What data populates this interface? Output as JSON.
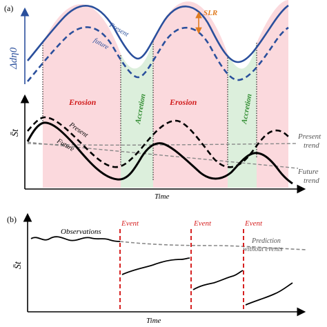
{
  "panel_a": {
    "label": "(a)",
    "y_axis_top": "Δdη0",
    "y_axis_bottom": "S̄t",
    "slr": "SLR",
    "wave_present": "Present",
    "wave_future": "future",
    "zones": [
      "Erosion",
      "Accretion",
      "Erosion",
      "Accretion"
    ],
    "curve_present": "Present",
    "curve_future": "Future",
    "present_trend": [
      "Present",
      "trend"
    ],
    "future_trend": [
      "Future",
      "trend"
    ],
    "x_axis": "Time"
  },
  "panel_b": {
    "label": "(b)",
    "y_axis": "S̄t",
    "observations": "Observations",
    "events": [
      "Event",
      "Event",
      "Event"
    ],
    "prediction": [
      "Prediction",
      "without events"
    ],
    "x_axis": "Time"
  },
  "colors": {
    "wave": "#2a4f9c",
    "erosion_fill": "#fbd9dd",
    "accretion_fill": "#dcefdc",
    "event": "#d62020",
    "erosion_text": "#d01a1a",
    "accretion_text": "#2e8b2e",
    "slr": "#e07b20",
    "trend": "#888888"
  }
}
